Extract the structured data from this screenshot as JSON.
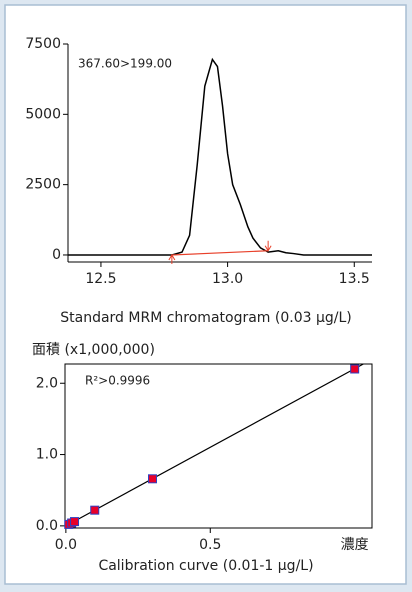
{
  "chart_data": [
    {
      "type": "line",
      "annotation": "367.60>199.00",
      "caption": "Standard MRM chromatogram (0.03 μg/L)",
      "x": [
        12.37,
        12.5,
        12.7,
        12.78,
        12.82,
        12.85,
        12.88,
        12.91,
        12.94,
        12.96,
        12.98,
        13.0,
        13.02,
        13.05,
        13.08,
        13.1,
        13.13,
        13.16,
        13.2,
        13.23,
        13.26,
        13.3,
        13.4,
        13.57
      ],
      "values": [
        0,
        0,
        0,
        0,
        100,
        700,
        3200,
        6000,
        6950,
        6700,
        5300,
        3600,
        2500,
        1800,
        1000,
        600,
        250,
        100,
        150,
        80,
        50,
        0,
        0,
        0
      ],
      "color": "#000000",
      "baseline": {
        "x": [
          12.78,
          13.16
        ],
        "y": [
          0,
          150
        ],
        "color": "#e8402a"
      },
      "xlim": [
        12.37,
        13.57
      ],
      "xticks": [
        12.5,
        {
          "value": 13.0,
          "label": "13.0"
        },
        13.5
      ],
      "ylim": [
        -250,
        7500
      ],
      "yticks": [
        0,
        2500,
        5000,
        7500
      ]
    },
    {
      "type": "scatter",
      "annotation": "R²>0.9996",
      "caption": "Calibration curve (0.01-1 μg/L)",
      "y_label": "面積 (x1,000,000)",
      "x_label": "濃度",
      "x": [
        0.01,
        0.02,
        0.03,
        0.1,
        0.3,
        1.0
      ],
      "values": [
        0.02,
        0.04,
        0.06,
        0.22,
        0.66,
        2.2
      ],
      "color": "#e8002a",
      "edge_color": "#3040c0",
      "fit": {
        "x": [
          0,
          1.03
        ],
        "y": [
          0,
          2.27
        ],
        "color": "#000000"
      },
      "xlim": [
        -0.003,
        1.06
      ],
      "xticks": [
        {
          "value": 0,
          "label": "0.0"
        },
        0.5
      ],
      "ylim": [
        -0.03,
        2.27
      ],
      "yticks": [
        {
          "value": 0,
          "label": "0.0"
        },
        {
          "value": 1,
          "label": "1.0"
        },
        {
          "value": 2,
          "label": "2.0"
        }
      ]
    }
  ]
}
